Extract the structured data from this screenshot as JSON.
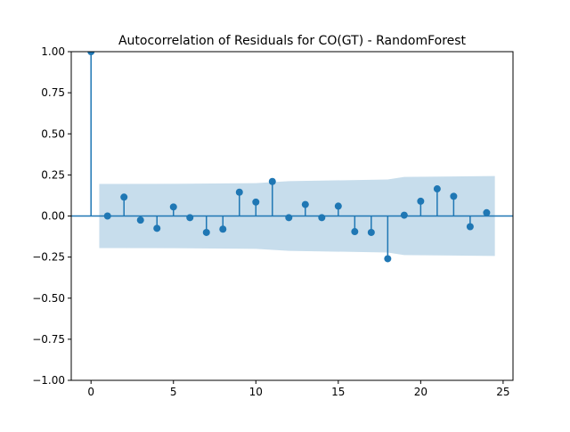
{
  "chart_data": {
    "type": "stem",
    "title": "Autocorrelation of Residuals for CO(GT) - RandomForest",
    "xlabel": "",
    "ylabel": "",
    "xlim": [
      -1.2,
      25.6
    ],
    "ylim": [
      -1.0,
      1.0
    ],
    "xticks": [
      0,
      5,
      10,
      15,
      20,
      25
    ],
    "yticks": [
      -1.0,
      -0.75,
      -0.5,
      -0.25,
      0.0,
      0.25,
      0.5,
      0.75,
      1.0
    ],
    "xtick_labels": [
      "0",
      "5",
      "10",
      "15",
      "20",
      "25"
    ],
    "ytick_labels": [
      "−1.00",
      "−0.75",
      "−0.50",
      "−0.25",
      "0.00",
      "0.25",
      "0.50",
      "0.75",
      "1.00"
    ],
    "series": [
      {
        "lags": [
          0,
          1,
          2,
          3,
          4,
          5,
          6,
          7,
          8,
          9,
          10,
          11,
          12,
          13,
          14,
          15,
          16,
          17,
          18,
          19,
          20,
          21,
          22,
          23,
          24
        ],
        "values": [
          1.0,
          0.0,
          0.115,
          -0.025,
          -0.075,
          0.055,
          -0.01,
          -0.1,
          -0.08,
          0.145,
          0.085,
          0.21,
          -0.01,
          0.07,
          -0.01,
          0.06,
          -0.095,
          -0.1,
          -0.26,
          0.005,
          0.09,
          0.165,
          0.12,
          -0.065,
          0.02
        ]
      }
    ],
    "confidence_band": {
      "lags": [
        0.5,
        5,
        10,
        12,
        18,
        19,
        24.5
      ],
      "upper": [
        0.195,
        0.196,
        0.2,
        0.212,
        0.222,
        0.238,
        0.243
      ],
      "lower": [
        -0.195,
        -0.196,
        -0.2,
        -0.212,
        -0.222,
        -0.238,
        -0.243
      ]
    },
    "colors": {
      "stem": "#1f77b4",
      "band": "#1f77b4",
      "zero_line": "#1f77b4"
    },
    "grid": false
  }
}
